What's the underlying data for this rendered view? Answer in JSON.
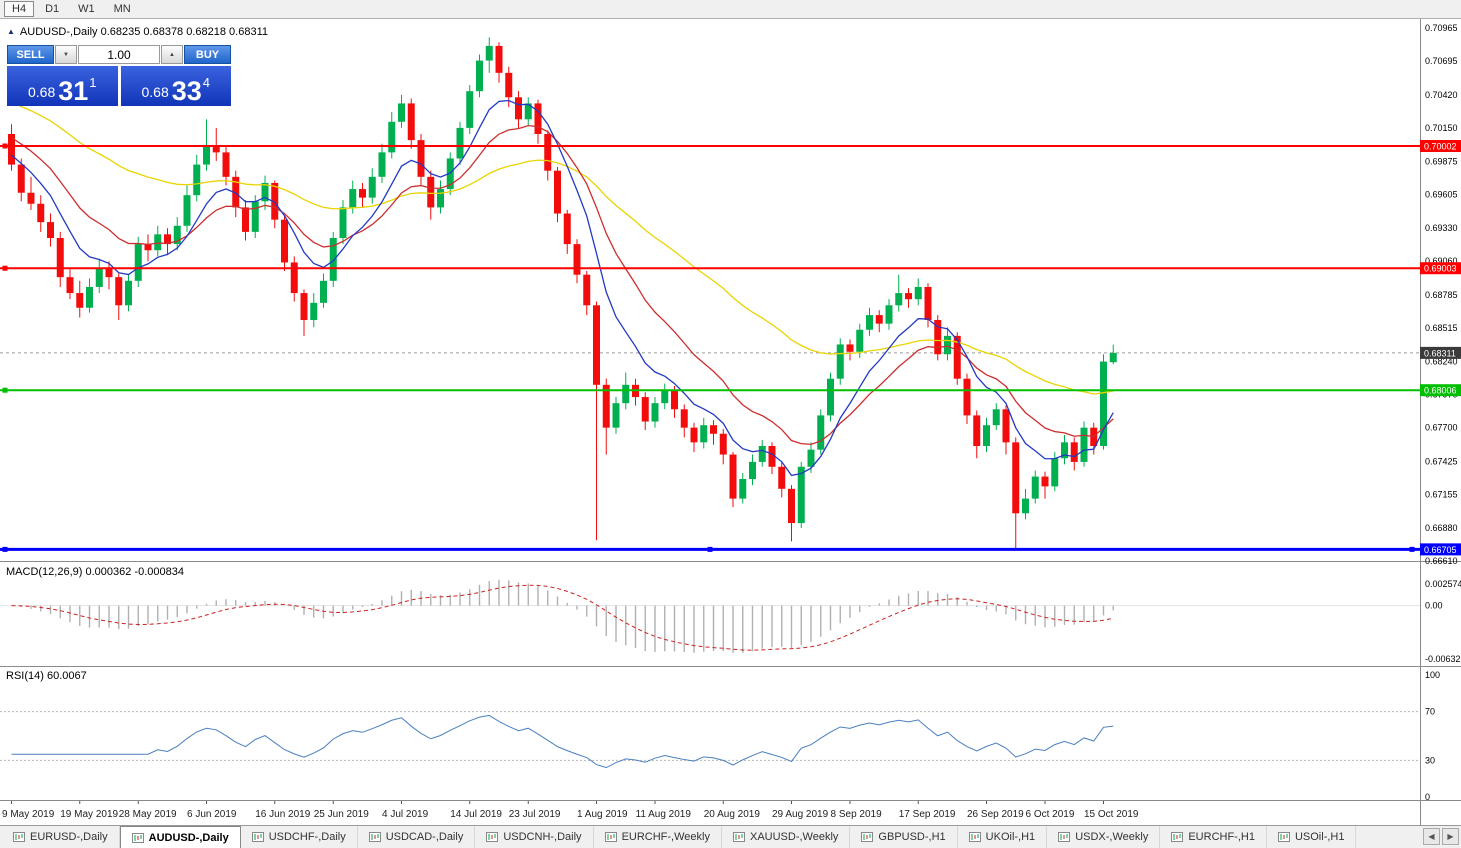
{
  "window": {
    "toolbar_timeframes": [
      "H4",
      "D1",
      "W1",
      "MN"
    ],
    "active_timeframe": "H4"
  },
  "chart_header": {
    "icon": "▲",
    "symbol_line": "AUDUSD-,Daily 0.68235 0.68378 0.68218 0.68311"
  },
  "trade_panel": {
    "sell_label": "SELL",
    "buy_label": "BUY",
    "volume": "1.00",
    "volume_down_glyph": "▼",
    "volume_up_glyph": "▲",
    "sell_price": {
      "base": "0.68",
      "pips": "31",
      "pt": "1"
    },
    "buy_price": {
      "base": "0.68",
      "pips": "33",
      "pt": "4"
    }
  },
  "bid_price": {
    "value": 0.68311,
    "label": "0.68311",
    "badge_color": "#3a3a3a"
  },
  "hlines": [
    {
      "price": 0.70002,
      "label": "0.70002",
      "color": "#ff0000",
      "width": 2,
      "handles": [
        "left"
      ]
    },
    {
      "price": 0.69003,
      "label": "0.69003",
      "color": "#ff0000",
      "width": 2,
      "handles": [
        "left"
      ]
    },
    {
      "price": 0.68006,
      "label": "0.68006",
      "color": "#00bf00",
      "width": 2,
      "handles": [
        "left"
      ]
    },
    {
      "price": 0.66705,
      "label": "0.66705",
      "color": "#0000ff",
      "width": 3,
      "handles": [
        "left",
        "center",
        "right"
      ]
    }
  ],
  "indicators": {
    "macd": {
      "label": "MACD(12,26,9) 0.000362 -0.000834",
      "fast": 12,
      "slow": 26,
      "signal": 9,
      "main_value": 0.000362,
      "signal_value": -0.000834,
      "histogram_color": "#b0b0b0",
      "signal_color": "#cc2222",
      "axis": [
        {
          "label": "0.002574",
          "v": 0.002574
        },
        {
          "label": "0.00",
          "v": 0
        },
        {
          "label": "-0.006326",
          "v": -0.006326
        }
      ]
    },
    "rsi": {
      "label": "RSI(14) 60.0067",
      "period": 14,
      "current_value": 60.0067,
      "line_color": "#4a7fc0",
      "levels": [
        70,
        30
      ],
      "axis": [
        {
          "label": "100",
          "v": 100
        },
        {
          "label": "70",
          "v": 70
        },
        {
          "label": "30",
          "v": 30
        },
        {
          "label": "0",
          "v": 0
        }
      ]
    }
  },
  "tabs": {
    "scroll_left_icon": "◀",
    "scroll_right_icon": "▶",
    "items": [
      {
        "label": "EURUSD-,Daily",
        "active": false
      },
      {
        "label": "AUDUSD-,Daily",
        "active": true
      },
      {
        "label": "USDCHF-,Daily",
        "active": false
      },
      {
        "label": "USDCAD-,Daily",
        "active": false
      },
      {
        "label": "USDCNH-,Daily",
        "active": false
      },
      {
        "label": "EURCHF-,Weekly",
        "active": false
      },
      {
        "label": "XAUUSD-,Weekly",
        "active": false
      },
      {
        "label": "GBPUSD-,H1",
        "active": false
      },
      {
        "label": "UKOil-,H1",
        "active": false
      },
      {
        "label": "USDX-,Weekly",
        "active": false
      },
      {
        "label": "EURCHF-,H1",
        "active": false
      },
      {
        "label": "USOil-,H1",
        "active": false
      }
    ]
  },
  "chart_data": {
    "type": "candlestick",
    "title": "AUDUSD-,Daily",
    "up_color": "#00b050",
    "down_color": "#f20c0c",
    "price_range": [
      0.6661,
      0.7104
    ],
    "y_axis_labels": [
      "0.70965",
      "0.70695",
      "0.70420",
      "0.70150",
      "0.69875",
      "0.69605",
      "0.69330",
      "0.69060",
      "0.68785",
      "0.68515",
      "0.68240",
      "0.67970",
      "0.67700",
      "0.67425",
      "0.67155",
      "0.66880",
      "0.66610"
    ],
    "x_ticks": [
      {
        "label": "9 May 2019",
        "bar": 0
      },
      {
        "label": "19 May 2019",
        "bar": 7
      },
      {
        "label": "28 May 2019",
        "bar": 13
      },
      {
        "label": "6 Jun 2019",
        "bar": 20
      },
      {
        "label": "16 Jun 2019",
        "bar": 27
      },
      {
        "label": "25 Jun 2019",
        "bar": 33
      },
      {
        "label": "4 Jul 2019",
        "bar": 40
      },
      {
        "label": "14 Jul 2019",
        "bar": 47
      },
      {
        "label": "23 Jul 2019",
        "bar": 53
      },
      {
        "label": "1 Aug 2019",
        "bar": 60
      },
      {
        "label": "11 Aug 2019",
        "bar": 66
      },
      {
        "label": "20 Aug 2019",
        "bar": 73
      },
      {
        "label": "29 Aug 2019",
        "bar": 80
      },
      {
        "label": "8 Sep 2019",
        "bar": 86
      },
      {
        "label": "17 Sep 2019",
        "bar": 93
      },
      {
        "label": "26 Sep 2019",
        "bar": 100
      },
      {
        "label": "6 Oct 2019",
        "bar": 106
      },
      {
        "label": "15 Oct 2019",
        "bar": 112
      }
    ],
    "moving_averages": [
      {
        "period": 45,
        "color": "#e9d400",
        "seed": 0.7038
      },
      {
        "period": 16,
        "color": "#cc2e2e",
        "seed": 0.701
      },
      {
        "period": 8,
        "color": "#2339c4",
        "seed": 0.6995
      }
    ],
    "ohlc": [
      [
        0.701,
        0.7018,
        0.698,
        0.6985
      ],
      [
        0.6985,
        0.699,
        0.6955,
        0.6962
      ],
      [
        0.6962,
        0.6975,
        0.6948,
        0.6953
      ],
      [
        0.6953,
        0.696,
        0.693,
        0.6938
      ],
      [
        0.6938,
        0.6945,
        0.6918,
        0.6925
      ],
      [
        0.6925,
        0.693,
        0.6885,
        0.6893
      ],
      [
        0.6893,
        0.69,
        0.6875,
        0.688
      ],
      [
        0.688,
        0.689,
        0.686,
        0.6868
      ],
      [
        0.6868,
        0.6892,
        0.6864,
        0.6885
      ],
      [
        0.6885,
        0.6908,
        0.688,
        0.69
      ],
      [
        0.69,
        0.6906,
        0.6883,
        0.6893
      ],
      [
        0.6893,
        0.6896,
        0.6858,
        0.687
      ],
      [
        0.687,
        0.6895,
        0.6865,
        0.689
      ],
      [
        0.689,
        0.6926,
        0.6885,
        0.692
      ],
      [
        0.692,
        0.6928,
        0.6906,
        0.6915
      ],
      [
        0.6915,
        0.6935,
        0.691,
        0.6928
      ],
      [
        0.6928,
        0.6933,
        0.6911,
        0.692
      ],
      [
        0.692,
        0.6942,
        0.6915,
        0.6935
      ],
      [
        0.6935,
        0.6968,
        0.693,
        0.696
      ],
      [
        0.696,
        0.6993,
        0.6955,
        0.6985
      ],
      [
        0.6985,
        0.7022,
        0.698,
        0.7
      ],
      [
        0.7,
        0.7015,
        0.6988,
        0.6995
      ],
      [
        0.6995,
        0.7,
        0.6968,
        0.6975
      ],
      [
        0.6975,
        0.698,
        0.6942,
        0.695
      ],
      [
        0.695,
        0.6956,
        0.6923,
        0.693
      ],
      [
        0.693,
        0.696,
        0.6925,
        0.6955
      ],
      [
        0.6955,
        0.6976,
        0.6948,
        0.697
      ],
      [
        0.697,
        0.6972,
        0.6933,
        0.694
      ],
      [
        0.694,
        0.6943,
        0.6898,
        0.6905
      ],
      [
        0.6905,
        0.691,
        0.6873,
        0.688
      ],
      [
        0.688,
        0.6883,
        0.6845,
        0.6858
      ],
      [
        0.6858,
        0.688,
        0.6852,
        0.6872
      ],
      [
        0.6872,
        0.6896,
        0.6868,
        0.689
      ],
      [
        0.689,
        0.693,
        0.6885,
        0.6925
      ],
      [
        0.6925,
        0.6956,
        0.692,
        0.695
      ],
      [
        0.695,
        0.6972,
        0.6945,
        0.6965
      ],
      [
        0.6965,
        0.697,
        0.695,
        0.6958
      ],
      [
        0.6958,
        0.6982,
        0.6953,
        0.6975
      ],
      [
        0.6975,
        0.7002,
        0.697,
        0.6995
      ],
      [
        0.6995,
        0.7028,
        0.699,
        0.702
      ],
      [
        0.702,
        0.7042,
        0.7015,
        0.7035
      ],
      [
        0.7035,
        0.7039,
        0.6998,
        0.7005
      ],
      [
        0.7005,
        0.701,
        0.6968,
        0.6975
      ],
      [
        0.6975,
        0.698,
        0.694,
        0.695
      ],
      [
        0.695,
        0.6972,
        0.6945,
        0.6965
      ],
      [
        0.6965,
        0.6995,
        0.696,
        0.699
      ],
      [
        0.699,
        0.702,
        0.6985,
        0.7015
      ],
      [
        0.7015,
        0.705,
        0.701,
        0.7045
      ],
      [
        0.7045,
        0.7075,
        0.704,
        0.707
      ],
      [
        0.707,
        0.7089,
        0.706,
        0.7082
      ],
      [
        0.7082,
        0.7085,
        0.7052,
        0.706
      ],
      [
        0.706,
        0.7065,
        0.7032,
        0.704
      ],
      [
        0.704,
        0.7045,
        0.7015,
        0.7022
      ],
      [
        0.7022,
        0.704,
        0.7017,
        0.7035
      ],
      [
        0.7035,
        0.7038,
        0.7002,
        0.701
      ],
      [
        0.701,
        0.7013,
        0.6972,
        0.698
      ],
      [
        0.698,
        0.6983,
        0.6938,
        0.6945
      ],
      [
        0.6945,
        0.6948,
        0.6912,
        0.692
      ],
      [
        0.692,
        0.6924,
        0.6888,
        0.6895
      ],
      [
        0.6895,
        0.6898,
        0.6862,
        0.687
      ],
      [
        0.687,
        0.6873,
        0.6678,
        0.6805
      ],
      [
        0.6805,
        0.681,
        0.6748,
        0.677
      ],
      [
        0.677,
        0.6795,
        0.6765,
        0.679
      ],
      [
        0.679,
        0.6815,
        0.6785,
        0.6805
      ],
      [
        0.6805,
        0.681,
        0.6788,
        0.6795
      ],
      [
        0.6795,
        0.6799,
        0.6768,
        0.6775
      ],
      [
        0.6775,
        0.6795,
        0.677,
        0.679
      ],
      [
        0.679,
        0.6806,
        0.6785,
        0.68
      ],
      [
        0.68,
        0.6804,
        0.6778,
        0.6785
      ],
      [
        0.6785,
        0.6789,
        0.6762,
        0.677
      ],
      [
        0.677,
        0.6774,
        0.675,
        0.6758
      ],
      [
        0.6758,
        0.6778,
        0.6753,
        0.6772
      ],
      [
        0.6772,
        0.6776,
        0.6756,
        0.6765
      ],
      [
        0.6765,
        0.6769,
        0.674,
        0.6748
      ],
      [
        0.6748,
        0.675,
        0.6705,
        0.6712
      ],
      [
        0.6712,
        0.6733,
        0.6708,
        0.6728
      ],
      [
        0.6728,
        0.6748,
        0.6723,
        0.6742
      ],
      [
        0.6742,
        0.676,
        0.6738,
        0.6755
      ],
      [
        0.6755,
        0.6758,
        0.6732,
        0.6738
      ],
      [
        0.6738,
        0.6742,
        0.6713,
        0.672
      ],
      [
        0.672,
        0.6723,
        0.6677,
        0.6692
      ],
      [
        0.6692,
        0.6742,
        0.6688,
        0.6738
      ],
      [
        0.6738,
        0.6758,
        0.6733,
        0.6752
      ],
      [
        0.6752,
        0.6785,
        0.6748,
        0.678
      ],
      [
        0.678,
        0.6815,
        0.6775,
        0.681
      ],
      [
        0.681,
        0.6843,
        0.6805,
        0.6838
      ],
      [
        0.6838,
        0.6842,
        0.6825,
        0.6832
      ],
      [
        0.6832,
        0.6855,
        0.6827,
        0.685
      ],
      [
        0.685,
        0.6868,
        0.6845,
        0.6862
      ],
      [
        0.6862,
        0.6866,
        0.6848,
        0.6855
      ],
      [
        0.6855,
        0.6875,
        0.685,
        0.687
      ],
      [
        0.687,
        0.6895,
        0.6865,
        0.688
      ],
      [
        0.688,
        0.6884,
        0.6868,
        0.6875
      ],
      [
        0.6875,
        0.6892,
        0.687,
        0.6885
      ],
      [
        0.6885,
        0.6888,
        0.6852,
        0.6858
      ],
      [
        0.6858,
        0.6862,
        0.6825,
        0.683
      ],
      [
        0.683,
        0.6852,
        0.6825,
        0.6845
      ],
      [
        0.6845,
        0.6848,
        0.6805,
        0.681
      ],
      [
        0.681,
        0.6814,
        0.6773,
        0.678
      ],
      [
        0.678,
        0.6784,
        0.6745,
        0.6755
      ],
      [
        0.6755,
        0.6778,
        0.675,
        0.6772
      ],
      [
        0.6772,
        0.679,
        0.6768,
        0.6785
      ],
      [
        0.6785,
        0.6788,
        0.6748,
        0.6758
      ],
      [
        0.6758,
        0.6762,
        0.6671,
        0.67
      ],
      [
        0.67,
        0.672,
        0.6695,
        0.6712
      ],
      [
        0.6712,
        0.6735,
        0.6708,
        0.673
      ],
      [
        0.673,
        0.6734,
        0.6712,
        0.6722
      ],
      [
        0.6722,
        0.675,
        0.6718,
        0.6745
      ],
      [
        0.6745,
        0.6764,
        0.674,
        0.6758
      ],
      [
        0.6758,
        0.6762,
        0.6735,
        0.6742
      ],
      [
        0.6742,
        0.6775,
        0.6738,
        0.677
      ],
      [
        0.677,
        0.6774,
        0.6748,
        0.6755
      ],
      [
        0.6755,
        0.683,
        0.6752,
        0.6824
      ],
      [
        0.68235,
        0.68378,
        0.68218,
        0.68311
      ]
    ]
  }
}
